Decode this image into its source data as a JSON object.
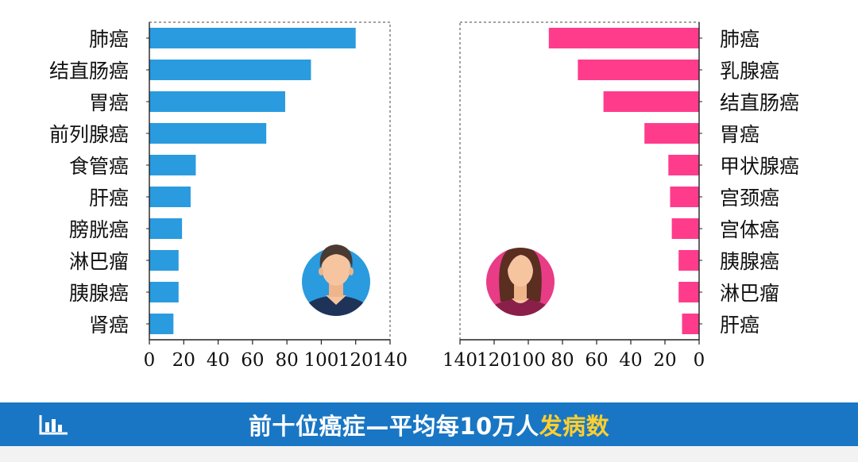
{
  "footer": {
    "title_main": "前十位癌症—平均每10万人",
    "title_highlight": "发病数",
    "icon": "bar-chart-icon",
    "background_color": "#1976c4",
    "highlight_color": "#ffcf2e"
  },
  "chart_data": [
    {
      "type": "bar",
      "orientation": "horizontal",
      "group": "male",
      "icon": "male-avatar-icon",
      "color": "#2a9bde",
      "categories": [
        "肺癌",
        "结直肠癌",
        "胃癌",
        "前列腺癌",
        "食管癌",
        "肝癌",
        "膀胱癌",
        "淋巴瘤",
        "胰腺癌",
        "肾癌"
      ],
      "values": [
        120,
        94,
        79,
        68,
        27,
        24,
        19,
        17,
        17,
        14
      ],
      "xlim": [
        0,
        140
      ],
      "xticks": [
        0,
        20,
        40,
        60,
        80,
        100,
        120,
        140
      ],
      "xlabel": "",
      "ylabel": "",
      "title": ""
    },
    {
      "type": "bar",
      "orientation": "horizontal",
      "direction": "reversed",
      "group": "female",
      "icon": "female-avatar-icon",
      "color": "#ff3c8c",
      "categories": [
        "肺癌",
        "乳腺癌",
        "结直肠癌",
        "胃癌",
        "甲状腺癌",
        "宫颈癌",
        "宫体癌",
        "胰腺癌",
        "淋巴瘤",
        "肝癌"
      ],
      "values": [
        88,
        71,
        56,
        32,
        18,
        17,
        16,
        12,
        12,
        10
      ],
      "xlim": [
        0,
        140
      ],
      "xticks": [
        140,
        120,
        100,
        80,
        60,
        40,
        20,
        0
      ],
      "xlabel": "",
      "ylabel": "",
      "title": ""
    }
  ]
}
